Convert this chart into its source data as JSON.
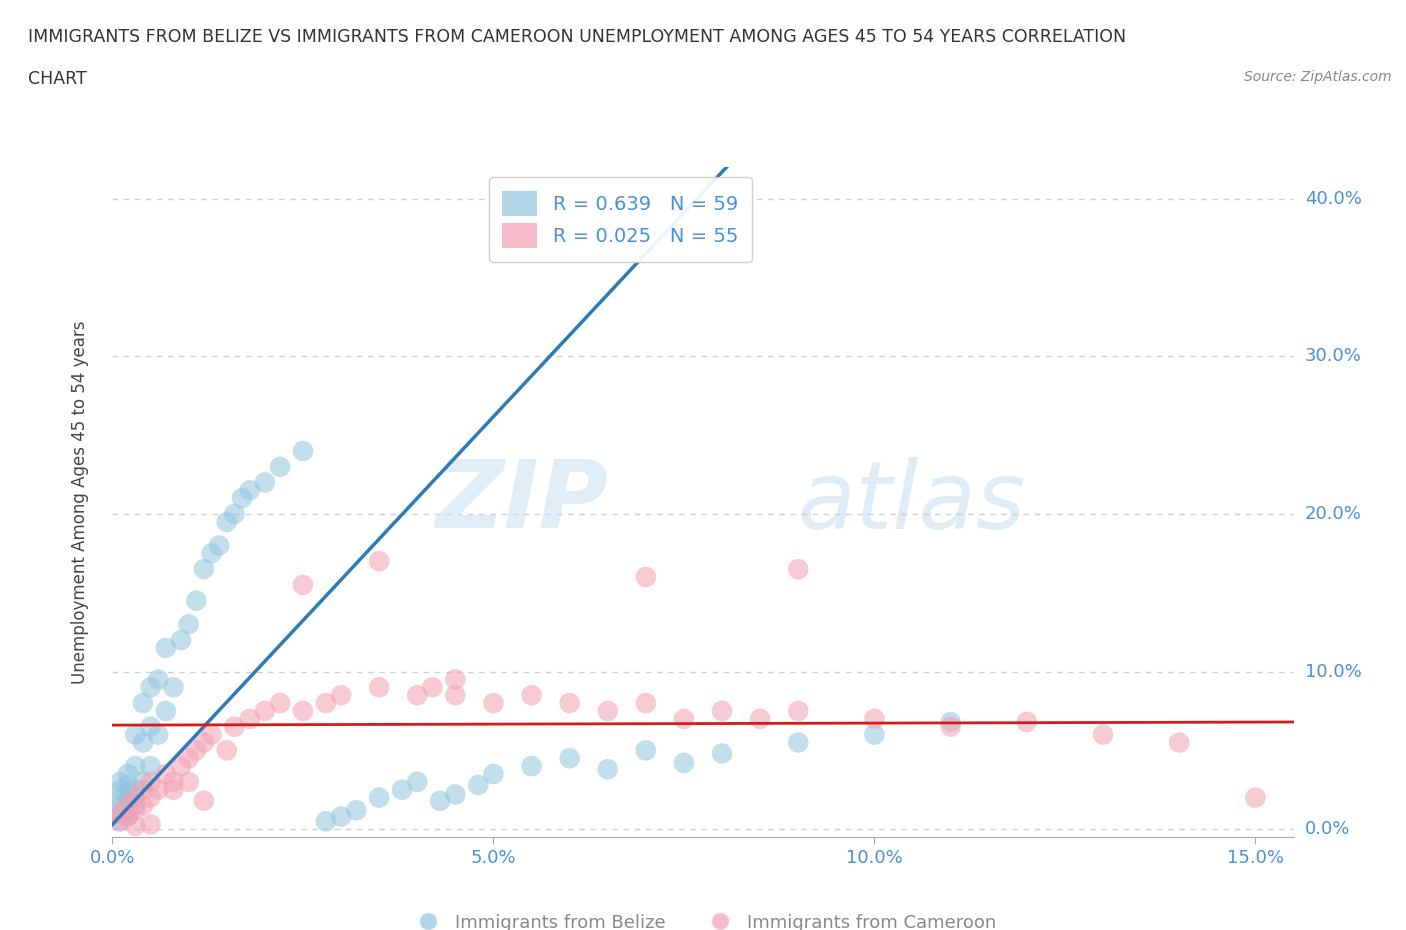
{
  "title_line1": "IMMIGRANTS FROM BELIZE VS IMMIGRANTS FROM CAMEROON UNEMPLOYMENT AMONG AGES 45 TO 54 YEARS CORRELATION",
  "title_line2": "CHART",
  "source": "Source: ZipAtlas.com",
  "ylabel": "Unemployment Among Ages 45 to 54 years",
  "xlim": [
    0.0,
    0.155
  ],
  "ylim": [
    -0.005,
    0.42
  ],
  "xticks": [
    0.0,
    0.05,
    0.1,
    0.15
  ],
  "xtick_labels": [
    "0.0%",
    "5.0%",
    "10.0%",
    "15.0%"
  ],
  "yticks": [
    0.0,
    0.1,
    0.2,
    0.3,
    0.4
  ],
  "ytick_labels": [
    "0.0%",
    "10.0%",
    "20.0%",
    "30.0%",
    "40.0%"
  ],
  "belize_R": 0.639,
  "belize_N": 59,
  "cameroon_R": 0.025,
  "cameroon_N": 55,
  "belize_color": "#92c5de",
  "cameroon_color": "#f4a0b5",
  "belize_line_color": "#2c7bb6",
  "cameroon_line_color": "#d7191c",
  "background_color": "#ffffff",
  "watermark_zip": "ZIP",
  "watermark_atlas": "atlas",
  "grid_color": "#d0d0d0",
  "belize_line_x0": 0.0,
  "belize_line_y0": 0.003,
  "belize_line_x1": 0.068,
  "belize_line_y1": 0.355,
  "cameroon_line_x0": 0.0,
  "cameroon_line_y0": 0.066,
  "cameroon_line_x1": 0.155,
  "cameroon_line_y1": 0.068,
  "belize_x": [
    0.001,
    0.001,
    0.001,
    0.001,
    0.001,
    0.001,
    0.002,
    0.002,
    0.002,
    0.002,
    0.002,
    0.002,
    0.003,
    0.003,
    0.003,
    0.003,
    0.004,
    0.004,
    0.004,
    0.005,
    0.005,
    0.005,
    0.006,
    0.006,
    0.007,
    0.007,
    0.008,
    0.009,
    0.01,
    0.011,
    0.012,
    0.013,
    0.014,
    0.015,
    0.016,
    0.017,
    0.018,
    0.02,
    0.022,
    0.025,
    0.028,
    0.03,
    0.032,
    0.035,
    0.038,
    0.04,
    0.043,
    0.045,
    0.048,
    0.05,
    0.055,
    0.06,
    0.065,
    0.07,
    0.075,
    0.08,
    0.09,
    0.1,
    0.11
  ],
  "belize_y": [
    0.005,
    0.01,
    0.015,
    0.02,
    0.025,
    0.03,
    0.008,
    0.012,
    0.018,
    0.022,
    0.028,
    0.035,
    0.015,
    0.025,
    0.04,
    0.06,
    0.03,
    0.055,
    0.08,
    0.04,
    0.065,
    0.09,
    0.06,
    0.095,
    0.075,
    0.115,
    0.09,
    0.12,
    0.13,
    0.145,
    0.165,
    0.175,
    0.18,
    0.195,
    0.2,
    0.21,
    0.215,
    0.22,
    0.23,
    0.24,
    0.005,
    0.008,
    0.012,
    0.02,
    0.025,
    0.03,
    0.018,
    0.022,
    0.028,
    0.035,
    0.04,
    0.045,
    0.038,
    0.05,
    0.042,
    0.048,
    0.055,
    0.06,
    0.068
  ],
  "cameroon_x": [
    0.001,
    0.001,
    0.002,
    0.002,
    0.003,
    0.003,
    0.004,
    0.004,
    0.005,
    0.005,
    0.006,
    0.007,
    0.008,
    0.009,
    0.01,
    0.011,
    0.012,
    0.013,
    0.015,
    0.016,
    0.018,
    0.02,
    0.022,
    0.025,
    0.028,
    0.03,
    0.035,
    0.04,
    0.042,
    0.045,
    0.05,
    0.055,
    0.06,
    0.065,
    0.07,
    0.075,
    0.08,
    0.085,
    0.09,
    0.1,
    0.11,
    0.12,
    0.13,
    0.14,
    0.15,
    0.025,
    0.035,
    0.045,
    0.07,
    0.09,
    0.003,
    0.005,
    0.008,
    0.01,
    0.012
  ],
  "cameroon_y": [
    0.005,
    0.01,
    0.008,
    0.015,
    0.012,
    0.02,
    0.015,
    0.025,
    0.02,
    0.03,
    0.025,
    0.035,
    0.03,
    0.04,
    0.045,
    0.05,
    0.055,
    0.06,
    0.05,
    0.065,
    0.07,
    0.075,
    0.08,
    0.075,
    0.08,
    0.085,
    0.09,
    0.085,
    0.09,
    0.085,
    0.08,
    0.085,
    0.08,
    0.075,
    0.08,
    0.07,
    0.075,
    0.07,
    0.075,
    0.07,
    0.065,
    0.068,
    0.06,
    0.055,
    0.02,
    0.155,
    0.17,
    0.095,
    0.16,
    0.165,
    0.002,
    0.003,
    0.025,
    0.03,
    0.018
  ]
}
